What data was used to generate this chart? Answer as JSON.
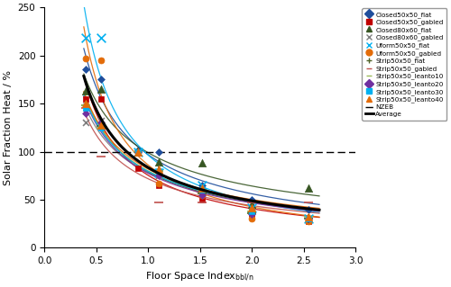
{
  "ylabel": "Solar Fraction Heat / %",
  "xlim": [
    0,
    3
  ],
  "ylim": [
    0,
    250
  ],
  "yticks": [
    0,
    50,
    100,
    150,
    200,
    250
  ],
  "xticks": [
    0,
    0.5,
    1.0,
    1.5,
    2.0,
    2.5,
    3.0
  ],
  "nzeb_y": 100,
  "series": [
    {
      "name": "Closed50x50_flat",
      "marker": "D",
      "color": "#1f4e9c",
      "markersize": 4,
      "x": [
        0.4,
        0.55,
        0.9,
        1.1,
        1.52,
        2.0,
        2.55
      ],
      "y": [
        186,
        175,
        101,
        100,
        65,
        50,
        40
      ]
    },
    {
      "name": "Closed50x50_gabled",
      "marker": "s",
      "color": "#c00000",
      "markersize": 5,
      "x": [
        0.4,
        0.55,
        0.9,
        1.1,
        1.52,
        2.0,
        2.55
      ],
      "y": [
        155,
        155,
        83,
        65,
        50,
        35,
        28
      ]
    },
    {
      "name": "Closed80x60_flat",
      "marker": "^",
      "color": "#375623",
      "markersize": 6,
      "x": [
        0.4,
        0.55,
        0.9,
        1.1,
        1.52,
        2.0,
        2.55
      ],
      "y": [
        163,
        165,
        100,
        89,
        88,
        45,
        62
      ]
    },
    {
      "name": "Closed80x60_gabled",
      "marker": "x",
      "color": "#7f7f7f",
      "markersize": 5,
      "x": [
        0.4,
        0.55,
        0.9,
        1.1,
        1.52,
        2.0,
        2.55
      ],
      "y": [
        130,
        132,
        100,
        75,
        58,
        38,
        30
      ]
    },
    {
      "name": "Uform50x50_flat",
      "marker": "x",
      "color": "#00b0f0",
      "markersize": 7,
      "x": [
        0.4,
        0.55,
        0.9,
        1.1,
        1.52,
        2.0,
        2.55
      ],
      "y": [
        218,
        218,
        100,
        78,
        65,
        42,
        30
      ]
    },
    {
      "name": "Uform50x50_gabled",
      "marker": "o",
      "color": "#e36c09",
      "markersize": 5,
      "x": [
        0.4,
        0.55,
        0.9,
        1.1,
        1.52,
        2.0,
        2.55
      ],
      "y": [
        197,
        195,
        100,
        67,
        55,
        30,
        28
      ]
    },
    {
      "name": "Strip50x50_flat",
      "marker": "+",
      "color": "#4f6228",
      "markersize": 7,
      "x": [
        0.4,
        0.55,
        0.9,
        1.1,
        1.52,
        2.0,
        2.55
      ],
      "y": [
        148,
        127,
        100,
        80,
        57,
        36,
        30
      ]
    },
    {
      "name": "Strip50x50_gabled",
      "marker": "_",
      "color": "#c0504d",
      "markersize": 7,
      "x": [
        0.4,
        0.55,
        0.9,
        1.1,
        1.52,
        2.0,
        2.55
      ],
      "y": [
        145,
        95,
        100,
        47,
        47,
        47,
        47
      ]
    },
    {
      "name": "Strip50x50_leanto10",
      "marker": "_",
      "color": "#9bbb59",
      "markersize": 7,
      "x": [
        0.4,
        0.55,
        0.9,
        1.1,
        1.52,
        2.0,
        2.55
      ],
      "y": [
        148,
        125,
        100,
        80,
        60,
        38,
        32
      ]
    },
    {
      "name": "Strip50x50_leanto20",
      "marker": "D",
      "color": "#7030a0",
      "markersize": 4,
      "x": [
        0.4,
        0.55,
        0.9,
        1.1,
        1.52,
        2.0,
        2.55
      ],
      "y": [
        140,
        130,
        100,
        75,
        55,
        35,
        30
      ]
    },
    {
      "name": "Strip50x50_leanto30",
      "marker": "s",
      "color": "#00b0f0",
      "markersize": 5,
      "x": [
        0.4,
        0.55,
        0.9,
        1.1,
        1.52,
        2.0,
        2.55
      ],
      "y": [
        145,
        125,
        100,
        80,
        60,
        38,
        30
      ]
    },
    {
      "name": "Strip50x50_leanto40",
      "marker": "^",
      "color": "#e36c09",
      "markersize": 6,
      "x": [
        0.4,
        0.55,
        0.9,
        1.1,
        1.52,
        2.0,
        2.55
      ],
      "y": [
        150,
        128,
        100,
        82,
        62,
        42,
        32
      ]
    }
  ],
  "curve_colors": [
    "#1f4e9c",
    "#c00000",
    "#375623",
    "#7f7f7f",
    "#00b0f0",
    "#e36c09",
    "#4f6228",
    "#c0504d",
    "#9bbb59",
    "#7030a0",
    "#00b0f0",
    "#e36c09"
  ],
  "average_color": "#000000",
  "background_color": "#ffffff",
  "legend_markers": [
    {
      "name": "Closed50x50_flat",
      "marker": "D",
      "color": "#1f4e9c"
    },
    {
      "name": "Closed50x50_gabled",
      "marker": "s",
      "color": "#c00000"
    },
    {
      "name": "Closed80x60_flat",
      "marker": "^",
      "color": "#375623"
    },
    {
      "name": "Closed80x60_gabled",
      "marker": "x",
      "color": "#7f7f7f"
    },
    {
      "name": "Uform50x50_flat",
      "marker": "x",
      "color": "#00b0f0"
    },
    {
      "name": "Uform50x50_gabled",
      "marker": "o",
      "color": "#e36c09"
    },
    {
      "name": "Strip50x50_flat",
      "marker": "+",
      "color": "#4f6228"
    },
    {
      "name": "Strip50x50_gabled",
      "marker": "_",
      "color": "#c0504d"
    },
    {
      "name": "Strip50x50_leanto10",
      "marker": "_",
      "color": "#9bbb59"
    },
    {
      "name": "Strip50x50_leanto20",
      "marker": "D",
      "color": "#7030a0"
    },
    {
      "name": "Strip50x50_leanto30",
      "marker": "s",
      "color": "#00b0f0"
    },
    {
      "name": "Strip50x50_leanto40",
      "marker": "^",
      "color": "#e36c09"
    }
  ]
}
